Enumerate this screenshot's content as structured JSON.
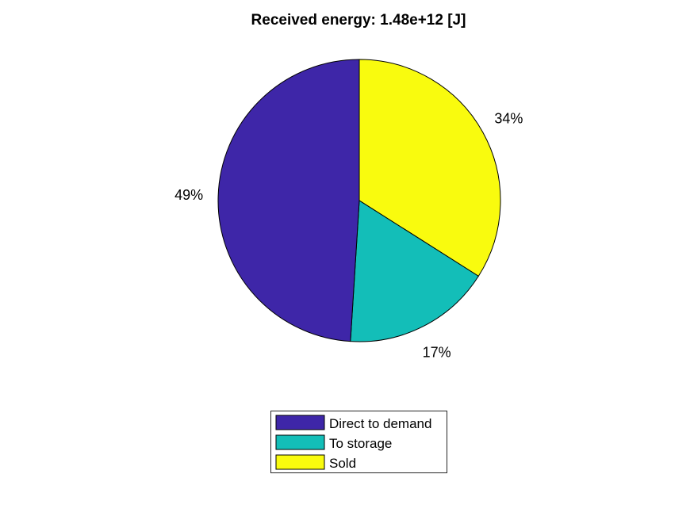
{
  "chart_data": {
    "type": "pie",
    "title": "Received energy: 1.48e+12 [J]",
    "slices": [
      {
        "name": "Direct to demand",
        "value": 49,
        "label": "49%",
        "color": "#3e26a8"
      },
      {
        "name": "To storage",
        "value": 17,
        "label": "17%",
        "color": "#13beb8"
      },
      {
        "name": "Sold",
        "value": 34,
        "label": "34%",
        "color": "#f9fb0e"
      }
    ],
    "legend_position": "bottom",
    "start_angle": "top",
    "direction": "clockwise starting with Sold"
  }
}
